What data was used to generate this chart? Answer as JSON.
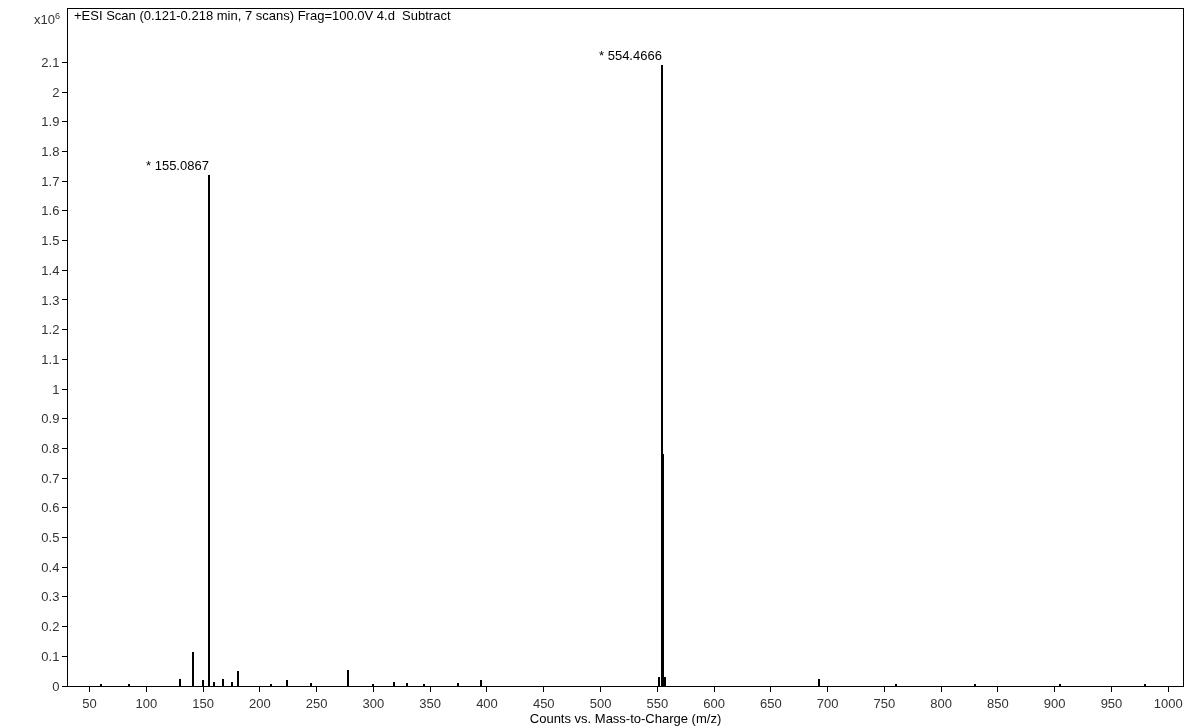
{
  "chart_data": {
    "type": "bar",
    "title": "+ESI Scan (0.121-0.218 min, 7 scans) Frag=100.0V 4.d  Subtract",
    "xlabel": "Counts vs. Mass-to-Charge (m/z)",
    "ylabel": "x10$^{6}$",
    "x": [
      60,
      85,
      130,
      141,
      150,
      155.0867,
      160,
      168,
      176,
      181,
      210,
      224,
      245,
      278,
      300,
      318,
      330,
      345,
      375,
      395,
      552,
      554.4666,
      555.47,
      557,
      693,
      760,
      830,
      905,
      980
    ],
    "series": [
      {
        "color": "#000000",
        "values": [
          0.005,
          0.006,
          0.025,
          0.115,
          0.02,
          1.72,
          0.015,
          0.025,
          0.015,
          0.05,
          0.008,
          0.02,
          0.01,
          0.055,
          0.008,
          0.012,
          0.01,
          0.008,
          0.01,
          0.02,
          0.03,
          2.09,
          0.78,
          0.03,
          0.025,
          0.008,
          0.006,
          0.008,
          0.008
        ]
      }
    ],
    "annotations": [
      {
        "text": "* 155.0867",
        "x": 155.0867,
        "y": 1.72
      },
      {
        "text": "* 554.4666",
        "x": 554.4666,
        "y": 2.09
      }
    ],
    "xlim": [
      31,
      1013
    ],
    "ylim": [
      0,
      2.28
    ],
    "xticks": [
      50,
      100,
      150,
      200,
      250,
      300,
      350,
      400,
      450,
      500,
      550,
      600,
      650,
      700,
      750,
      800,
      850,
      900,
      950,
      1000
    ],
    "yticks": [
      0,
      0.1,
      0.2,
      0.3,
      0.4,
      0.5,
      0.6,
      0.7,
      0.8,
      0.9,
      1,
      1.1,
      1.2,
      1.3,
      1.4,
      1.5,
      1.6,
      1.7,
      1.8,
      1.9,
      2,
      2.1
    ]
  }
}
